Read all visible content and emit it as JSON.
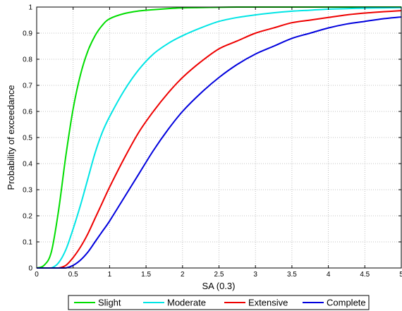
{
  "chart_data": {
    "type": "line",
    "xlabel": "SA (0.3)",
    "ylabel": "Probability of exceedance",
    "xlim": [
      0,
      5
    ],
    "ylim": [
      0,
      1
    ],
    "x_ticks": [
      0,
      0.5,
      1,
      1.5,
      2,
      2.5,
      3,
      3.5,
      4,
      4.5,
      5
    ],
    "x_tick_labels": [
      "0",
      "0.5",
      "1",
      "1.5",
      "2",
      "2.5",
      "3",
      "3.5",
      "4",
      "4.5",
      "5"
    ],
    "y_ticks": [
      0,
      0.1,
      0.2,
      0.3,
      0.4,
      0.5,
      0.6,
      0.7,
      0.8,
      0.9,
      1
    ],
    "y_tick_labels": [
      "0",
      "0.1",
      "0.2",
      "0.3",
      "0.4",
      "0.5",
      "0.6",
      "0.7",
      "0.8",
      "0.9",
      "1"
    ],
    "grid": true,
    "legend_position": "bottom",
    "x": [
      0,
      0.1,
      0.2,
      0.3,
      0.4,
      0.5,
      0.6,
      0.7,
      0.8,
      0.9,
      1,
      1.2,
      1.4,
      1.6,
      1.8,
      2,
      2.25,
      2.5,
      2.75,
      3,
      3.25,
      3.5,
      3.75,
      4,
      4.25,
      4.5,
      4.75,
      5
    ],
    "series": [
      {
        "name": "Slight",
        "color": "#00dd00",
        "values": [
          0,
          0.01,
          0.06,
          0.22,
          0.43,
          0.61,
          0.74,
          0.83,
          0.89,
          0.93,
          0.955,
          0.975,
          0.985,
          0.99,
          0.994,
          0.997,
          0.998,
          0.999,
          1,
          1,
          1,
          1,
          1,
          1,
          1,
          1,
          1,
          1
        ]
      },
      {
        "name": "Moderate",
        "color": "#00e5e5",
        "values": [
          0,
          0,
          0,
          0.02,
          0.07,
          0.15,
          0.24,
          0.34,
          0.44,
          0.52,
          0.58,
          0.68,
          0.76,
          0.82,
          0.86,
          0.89,
          0.92,
          0.945,
          0.96,
          0.97,
          0.978,
          0.984,
          0.988,
          0.992,
          0.994,
          0.996,
          0.997,
          0.998
        ]
      },
      {
        "name": "Extensive",
        "color": "#ee0000",
        "values": [
          0,
          0,
          0,
          0,
          0.01,
          0.04,
          0.08,
          0.13,
          0.19,
          0.25,
          0.31,
          0.42,
          0.52,
          0.6,
          0.67,
          0.73,
          0.79,
          0.84,
          0.87,
          0.9,
          0.92,
          0.94,
          0.95,
          0.96,
          0.97,
          0.977,
          0.982,
          0.986
        ]
      },
      {
        "name": "Complete",
        "color": "#0000dd",
        "values": [
          0,
          0,
          0,
          0,
          0,
          0.01,
          0.03,
          0.06,
          0.1,
          0.14,
          0.18,
          0.27,
          0.36,
          0.45,
          0.53,
          0.6,
          0.67,
          0.73,
          0.78,
          0.82,
          0.85,
          0.88,
          0.9,
          0.92,
          0.935,
          0.945,
          0.955,
          0.962
        ]
      }
    ]
  }
}
